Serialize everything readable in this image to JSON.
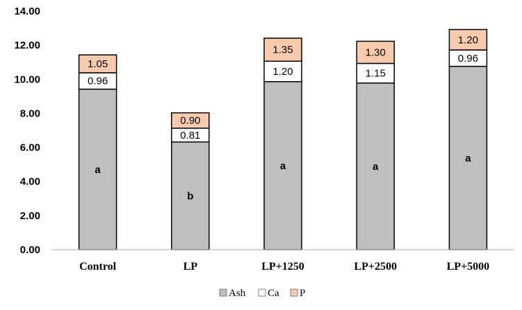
{
  "chart_data": {
    "type": "bar",
    "stacked": true,
    "categories": [
      "Control",
      "LP",
      "LP+1250",
      "LP+2500",
      "LP+5000"
    ],
    "series": [
      {
        "name": "Ash",
        "values": [
          9.42,
          6.32,
          9.86,
          9.78,
          10.76
        ],
        "color": "#bfbfbf",
        "value_labels": [
          "",
          "",
          "",
          "",
          ""
        ]
      },
      {
        "name": "Ca",
        "values": [
          0.96,
          0.81,
          1.2,
          1.15,
          0.96
        ],
        "color": "#ffffff",
        "value_labels": [
          "0.96",
          "0.81",
          "1.20",
          "1.15",
          "0.96"
        ]
      },
      {
        "name": "P",
        "values": [
          1.05,
          0.9,
          1.35,
          1.3,
          1.2
        ],
        "color": "#f8cbad",
        "value_labels": [
          "1.05",
          "0.90",
          "1.35",
          "1.30",
          "1.20"
        ]
      }
    ],
    "annotations": [
      "a",
      "b",
      "a",
      "a",
      "a"
    ],
    "ylim": [
      0,
      14
    ],
    "yticks": [
      "0.00",
      "2.00",
      "4.00",
      "6.00",
      "8.00",
      "10.00",
      "12.00",
      "14.00"
    ],
    "xlabel": "",
    "ylabel": "",
    "title": "",
    "legend_position": "bottom",
    "grid": false
  }
}
